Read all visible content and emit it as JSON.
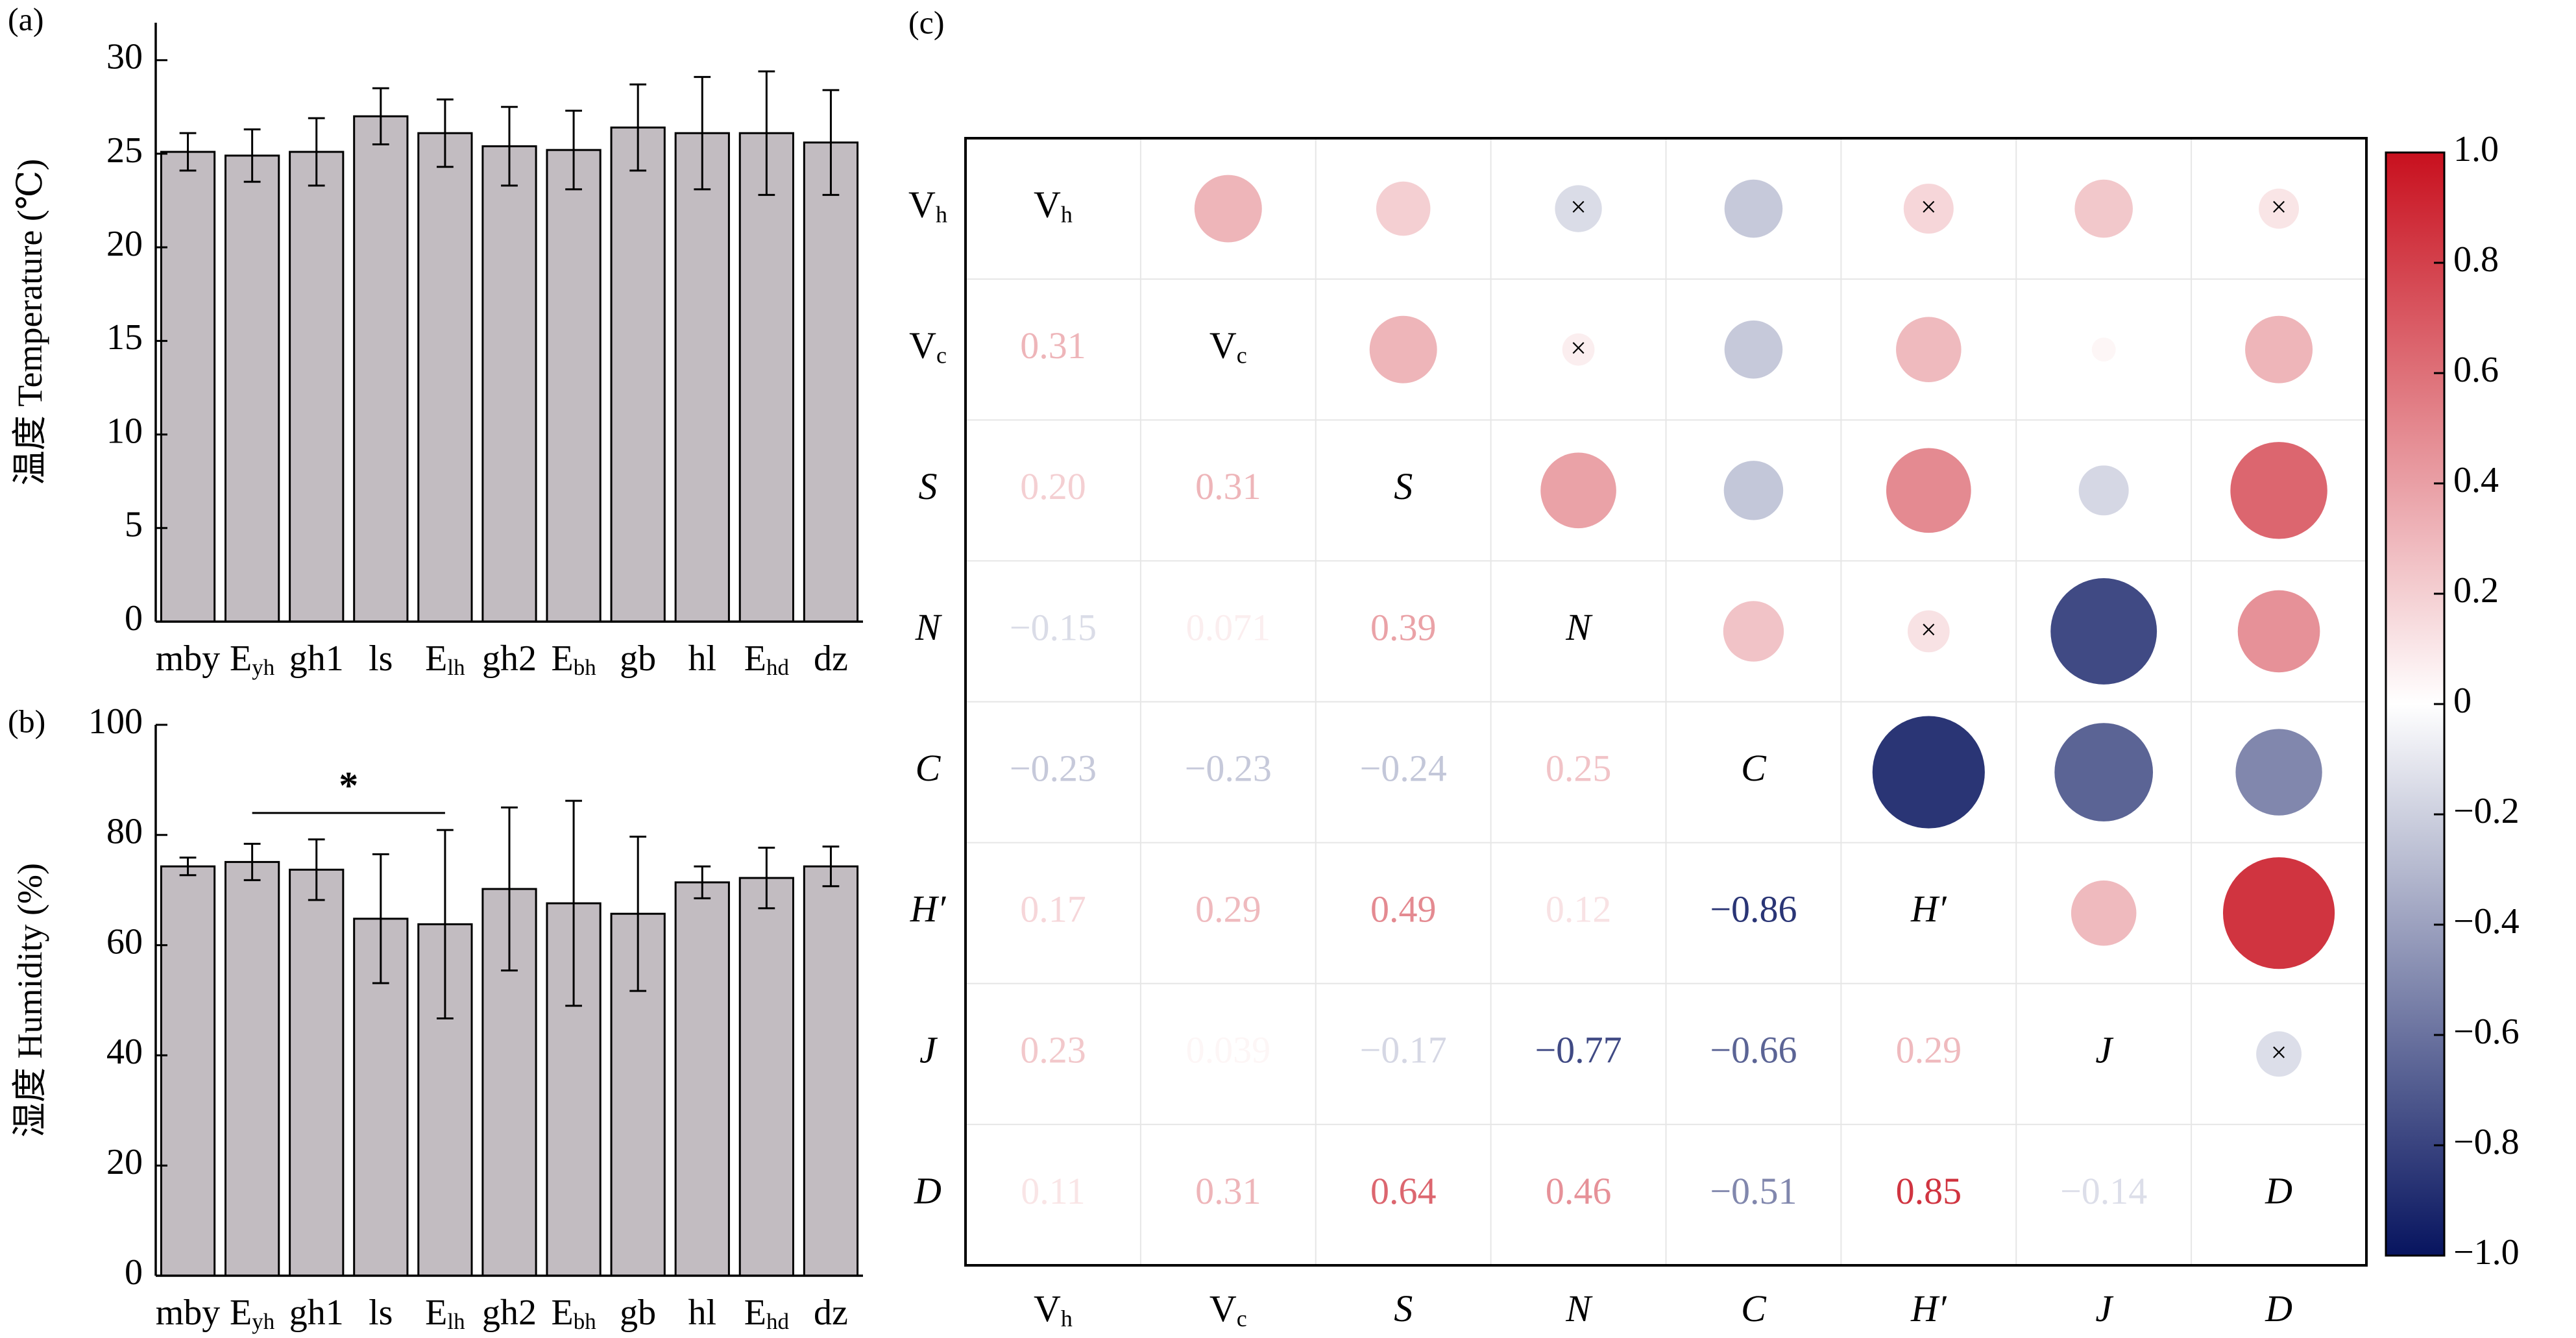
{
  "chart_data": [
    {
      "panel_label": "(a)",
      "type": "bar",
      "ylabel_cn": "温度",
      "ylabel": "Temperature (℃)",
      "ylim": [
        0,
        32
      ],
      "yticks": [
        "0",
        "5",
        "10",
        "15",
        "20",
        "25",
        "30"
      ],
      "categories": [
        {
          "base": "mby",
          "sub": ""
        },
        {
          "base": "E",
          "sub": "yh"
        },
        {
          "base": "gh1",
          "sub": ""
        },
        {
          "base": "ls",
          "sub": ""
        },
        {
          "base": "E",
          "sub": "lh"
        },
        {
          "base": "gh2",
          "sub": ""
        },
        {
          "base": "E",
          "sub": "bh"
        },
        {
          "base": "gb",
          "sub": ""
        },
        {
          "base": "hl",
          "sub": ""
        },
        {
          "base": "E",
          "sub": "hd"
        },
        {
          "base": "dz",
          "sub": ""
        }
      ],
      "values": [
        25.1,
        24.9,
        25.1,
        27.0,
        26.1,
        25.4,
        25.2,
        26.4,
        26.1,
        26.1,
        25.6
      ],
      "error": [
        1.0,
        1.4,
        1.8,
        1.5,
        1.8,
        2.1,
        2.1,
        2.3,
        3.0,
        3.3,
        2.8
      ],
      "bar_color": "#c2bcc1"
    },
    {
      "panel_label": "(b)",
      "type": "bar",
      "ylabel_cn": "湿度",
      "ylabel": "Humidity (%)",
      "ylim": [
        0,
        100
      ],
      "yticks": [
        "0",
        "20",
        "40",
        "60",
        "80",
        "100"
      ],
      "categories": [
        {
          "base": "mby",
          "sub": ""
        },
        {
          "base": "E",
          "sub": "yh"
        },
        {
          "base": "gh1",
          "sub": ""
        },
        {
          "base": "ls",
          "sub": ""
        },
        {
          "base": "E",
          "sub": "lh"
        },
        {
          "base": "gh2",
          "sub": ""
        },
        {
          "base": "E",
          "sub": "bh"
        },
        {
          "base": "gb",
          "sub": ""
        },
        {
          "base": "hl",
          "sub": ""
        },
        {
          "base": "E",
          "sub": "hd"
        },
        {
          "base": "dz",
          "sub": ""
        }
      ],
      "values": [
        74.3,
        75.1,
        73.7,
        64.8,
        63.8,
        70.2,
        67.6,
        65.7,
        71.4,
        72.2,
        74.3
      ],
      "error": [
        1.6,
        3.3,
        5.5,
        11.7,
        17.1,
        14.8,
        18.6,
        14.0,
        2.9,
        5.5,
        3.6
      ],
      "significance": {
        "from": 1,
        "to": 4,
        "label": "*",
        "level": 84
      },
      "bar_color": "#c2bcc1"
    },
    {
      "panel_label": "(c)",
      "type": "heatmap",
      "variables": [
        {
          "base": "V",
          "sub": "h",
          "italic": false
        },
        {
          "base": "V",
          "sub": "c",
          "italic": false
        },
        {
          "base": "S",
          "sub": "",
          "italic": true
        },
        {
          "base": "N",
          "sub": "",
          "italic": true
        },
        {
          "base": "C",
          "sub": "",
          "italic": true
        },
        {
          "base": "H′",
          "sub": "",
          "italic": true
        },
        {
          "base": "J",
          "sub": "",
          "italic": true
        },
        {
          "base": "D",
          "sub": "",
          "italic": true
        }
      ],
      "matrix": [
        [
          1,
          0.31,
          0.2,
          -0.15,
          -0.23,
          0.17,
          0.23,
          0.11
        ],
        [
          0.31,
          1,
          0.31,
          0.071,
          -0.23,
          0.29,
          0.039,
          0.31
        ],
        [
          0.2,
          0.31,
          1,
          0.39,
          -0.24,
          0.49,
          -0.17,
          0.64
        ],
        [
          -0.15,
          0.071,
          0.39,
          1,
          0.25,
          0.12,
          -0.77,
          0.46
        ],
        [
          -0.23,
          -0.23,
          -0.24,
          0.25,
          1,
          -0.86,
          -0.66,
          -0.51
        ],
        [
          0.17,
          0.29,
          0.49,
          0.12,
          -0.86,
          1,
          0.29,
          0.85
        ],
        [
          0.23,
          0.039,
          -0.17,
          -0.77,
          -0.66,
          0.29,
          1,
          -0.14
        ],
        [
          0.11,
          0.31,
          0.64,
          0.46,
          -0.51,
          0.85,
          -0.14,
          1
        ]
      ],
      "lower_text": [
        [],
        [
          "0.31"
        ],
        [
          "0.20",
          "0.31"
        ],
        [
          "−0.15",
          "0.071",
          "0.39"
        ],
        [
          "−0.23",
          "−0.23",
          "−0.24",
          "0.25"
        ],
        [
          "0.17",
          "0.29",
          "0.49",
          "0.12",
          "−0.86"
        ],
        [
          "0.23",
          "0.039",
          "−0.17",
          "−0.77",
          "−0.66",
          "0.29"
        ],
        [
          "0.11",
          "0.31",
          "0.64",
          "0.46",
          "−0.51",
          "0.85",
          "−0.14"
        ]
      ],
      "nonsignificant_marker": "×",
      "nonsignificant_pairs": [
        [
          0,
          3
        ],
        [
          0,
          5
        ],
        [
          0,
          7
        ],
        [
          1,
          3
        ],
        [
          3,
          5
        ],
        [
          6,
          7
        ]
      ],
      "colorbar": {
        "range": [
          -1.0,
          1.0
        ],
        "ticks": [
          "1.0",
          "0.8",
          "0.6",
          "0.4",
          "0.2",
          "0",
          "−0.2",
          "−0.4",
          "−0.6",
          "−0.8",
          "−1.0"
        ],
        "low_color": "#07145f",
        "mid_color": "#ffffff",
        "high_color": "#c8101e"
      }
    }
  ]
}
